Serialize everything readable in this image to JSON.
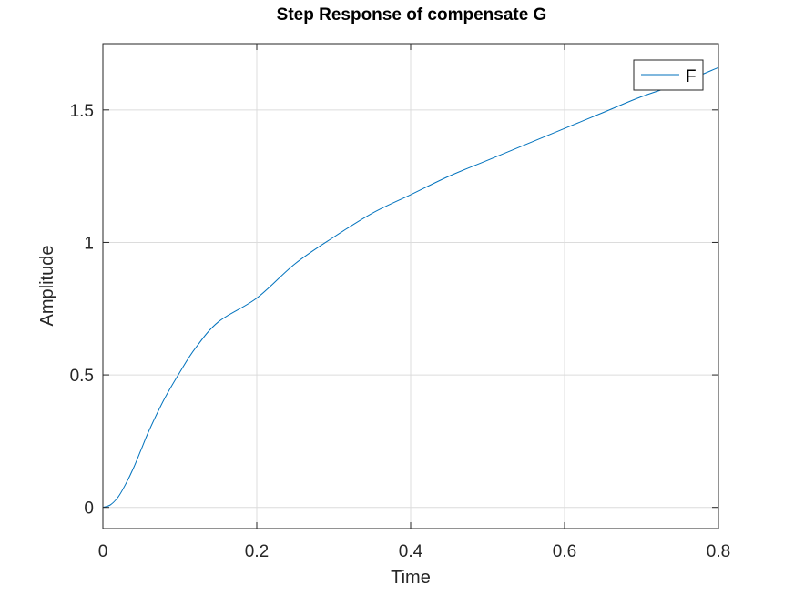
{
  "chart_data": {
    "type": "line",
    "title": "Step Response of compensate G",
    "xlabel": "Time",
    "ylabel": "Amplitude",
    "xlim": [
      0,
      0.8
    ],
    "ylim": [
      -0.08,
      1.75
    ],
    "xticks": [
      0,
      0.2,
      0.4,
      0.6,
      0.8
    ],
    "xtick_labels": [
      "0",
      "0.2",
      "0.4",
      "0.6",
      "0.8"
    ],
    "yticks": [
      0,
      0.5,
      1,
      1.5
    ],
    "ytick_labels": [
      "0",
      "0.5",
      "1",
      "1.5"
    ],
    "grid": true,
    "legend": {
      "position": "top-right",
      "entries": [
        "F"
      ]
    },
    "series": [
      {
        "name": "F",
        "color": "#0072bd",
        "x": [
          0,
          0.01,
          0.02,
          0.03,
          0.04,
          0.05,
          0.06,
          0.08,
          0.1,
          0.12,
          0.15,
          0.2,
          0.25,
          0.3,
          0.35,
          0.4,
          0.45,
          0.5,
          0.55,
          0.6,
          0.65,
          0.7,
          0.75,
          0.8
        ],
        "y": [
          0,
          0.01,
          0.04,
          0.09,
          0.15,
          0.22,
          0.29,
          0.41,
          0.51,
          0.6,
          0.7,
          0.79,
          0.92,
          1.02,
          1.11,
          1.18,
          1.25,
          1.31,
          1.37,
          1.43,
          1.49,
          1.55,
          1.6,
          1.66
        ]
      }
    ]
  }
}
